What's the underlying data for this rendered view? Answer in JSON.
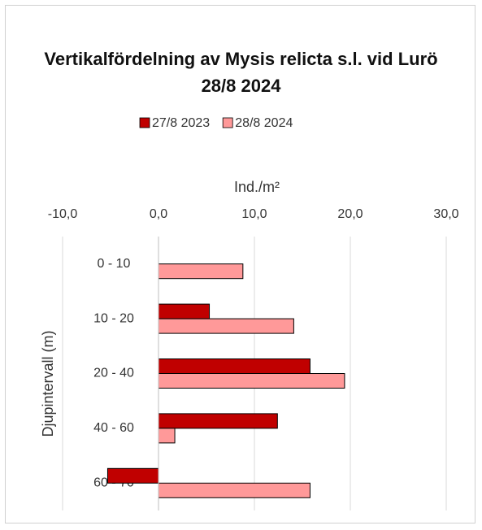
{
  "chart_data": {
    "type": "hbar",
    "title": "Vertikalfördelning av Mysis relicta s.l. vid Lurö 28/8 2024",
    "x_label": "Ind./m²",
    "y_label": "Djupintervall (m)",
    "categories": [
      "0 - 10",
      "10 - 20",
      "20 - 40",
      "40 - 60",
      "60 - 70"
    ],
    "series": [
      {
        "name": "27/8 2023",
        "color": "#c00000",
        "values": [
          0,
          5.3,
          15.8,
          12.4,
          -5.3
        ]
      },
      {
        "name": "28/8 2024",
        "color": "#ff9999",
        "values": [
          8.8,
          14.1,
          19.4,
          1.7,
          15.8
        ]
      }
    ],
    "xlim": [
      -10,
      30
    ],
    "xticks": [
      {
        "value": -10,
        "label": "-10,0"
      },
      {
        "value": 0,
        "label": "0,0"
      },
      {
        "value": 10,
        "label": "10,0"
      },
      {
        "value": 20,
        "label": "20,0"
      },
      {
        "value": 30,
        "label": "30,0"
      }
    ],
    "grid": true,
    "legend": "top"
  }
}
